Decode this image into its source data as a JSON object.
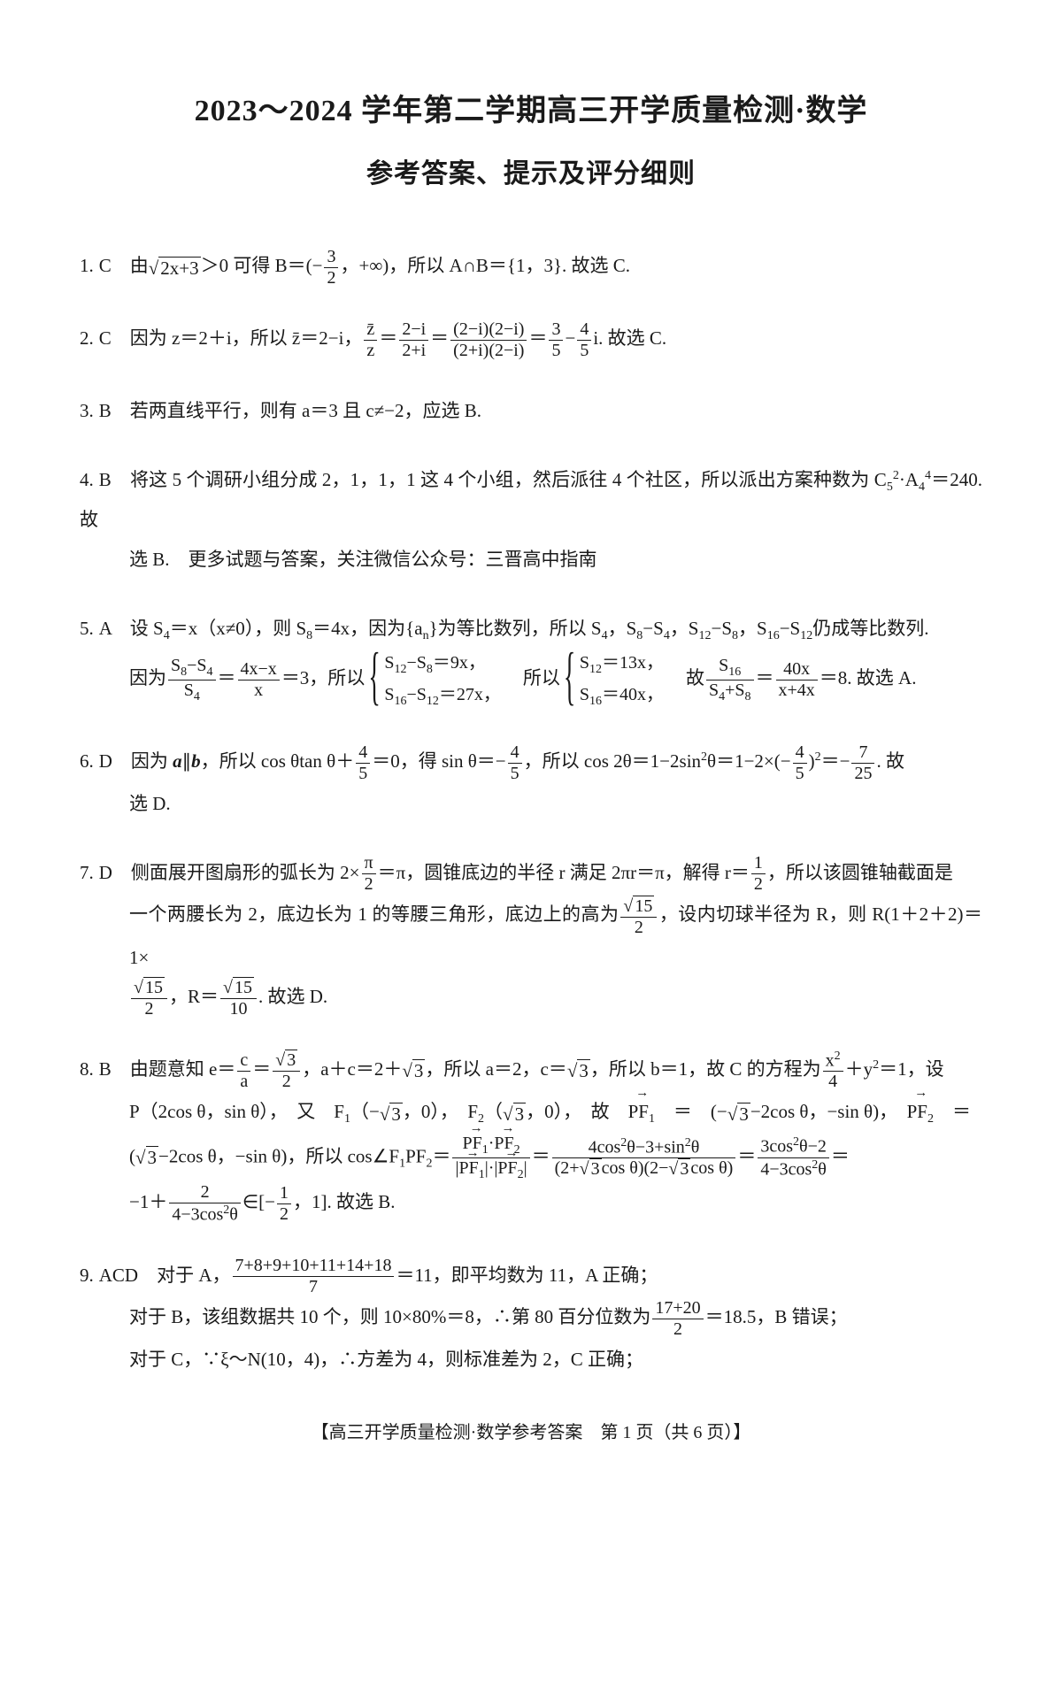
{
  "header": {
    "title1": "2023～2024 学年第二学期高三开学质量检测·数学",
    "title2": "参考答案、提示及评分细则"
  },
  "questions": [
    {
      "num": "1.",
      "ans": "C",
      "lines": [
        "由<span class='radical'>√<span class='sqrt'>2x+3</span></span>＞0 可得 B＝(−<span class='frac'><span class='num'>3</span><span class='den'>2</span></span>，+∞)，所以 A∩B＝{1，3}. 故选 C."
      ]
    },
    {
      "num": "2.",
      "ans": "C",
      "lines": [
        "因为 z＝2＋i，所以 z̄＝2−i，<span class='frac'><span class='num'>z̄</span><span class='den'>z</span></span>＝<span class='frac'><span class='num'>2−i</span><span class='den'>2+i</span></span>＝<span class='frac'><span class='num'>(2−i)(2−i)</span><span class='den'>(2+i)(2−i)</span></span>＝<span class='frac'><span class='num'>3</span><span class='den'>5</span></span>−<span class='frac'><span class='num'>4</span><span class='den'>5</span></span>i. 故选 C."
      ]
    },
    {
      "num": "3.",
      "ans": "B",
      "lines": [
        "若两直线平行，则有 a＝3 且 c≠−2，应选 B."
      ]
    },
    {
      "num": "4.",
      "ans": "B",
      "lines": [
        "将这 5 个调研小组分成 2，1，1，1 这 4 个小组，然后派往 4 个社区，所以派出方案种数为 C<sub>5</sub><sup>2</sup>·A<sub>4</sub><sup>4</sup>＝240. 故",
        "选 B.　更多试题与答案，关注微信公众号：三晋高中指南"
      ]
    },
    {
      "num": "5.",
      "ans": "A",
      "lines": [
        "设 S<sub>4</sub>＝x（x≠0），则 S<sub>8</sub>＝4x，因为{a<sub>n</sub>}为等比数列，所以 S<sub>4</sub>，S<sub>8</sub>−S<sub>4</sub>，S<sub>12</sub>−S<sub>8</sub>，S<sub>16</sub>−S<sub>12</sub>仍成等比数列.",
        "因为<span class='frac'><span class='num'>S<sub>8</sub>−S<sub>4</sub></span><span class='den'>S<sub>4</sub></span></span>＝<span class='frac'><span class='num'>4x−x</span><span class='den'>x</span></span>＝3，所以<span class='brace'><span class='row'>S<sub>12</sub>−S<sub>8</sub>＝9x，</span><span class='row'>S<sub>16</sub>−S<sub>12</sub>＝27x，</span></span>　所以<span class='brace'><span class='row'>S<sub>12</sub>＝13x，</span><span class='row'>S<sub>16</sub>＝40x，</span></span>　故<span class='frac'><span class='num'>S<sub>16</sub></span><span class='den'>S<sub>4</sub>+S<sub>8</sub></span></span>＝<span class='frac'><span class='num'>40x</span><span class='den'>x+4x</span></span>＝8. 故选 A."
      ]
    },
    {
      "num": "6.",
      "ans": "D",
      "lines": [
        "因为 <b><i>a</i></b>∥<b><i>b</i></b>，所以 cos θtan θ＋<span class='frac'><span class='num'>4</span><span class='den'>5</span></span>＝0，得 sin θ＝−<span class='frac'><span class='num'>4</span><span class='den'>5</span></span>，所以 cos 2θ＝1−2sin<sup>2</sup>θ＝1−2×(−<span class='frac'><span class='num'>4</span><span class='den'>5</span></span>)<sup>2</sup>＝−<span class='frac'><span class='num'>7</span><span class='den'>25</span></span>. 故",
        "选 D."
      ]
    },
    {
      "num": "7.",
      "ans": "D",
      "lines": [
        "侧面展开图扇形的弧长为 2×<span class='frac'><span class='num'>π</span><span class='den'>2</span></span>＝π，圆锥底边的半径 r 满足 2πr＝π，解得 r＝<span class='frac'><span class='num'>1</span><span class='den'>2</span></span>，所以该圆锥轴截面是",
        "一个两腰长为 2，底边长为 1 的等腰三角形，底边上的高为<span class='frac'><span class='num'><span class='radical'>√<span class='sqrt'>15</span></span></span><span class='den'>2</span></span>，设内切球半径为 R，则 R(1＋2＋2)＝1×",
        "<span class='frac'><span class='num'><span class='radical'>√<span class='sqrt'>15</span></span></span><span class='den'>2</span></span>，R＝<span class='frac'><span class='num'><span class='radical'>√<span class='sqrt'>15</span></span></span><span class='den'>10</span></span>. 故选 D."
      ]
    },
    {
      "num": "8.",
      "ans": "B",
      "lines": [
        "由题意知 e＝<span class='frac'><span class='num'>c</span><span class='den'>a</span></span>＝<span class='frac'><span class='num'><span class='radical'>√<span class='sqrt'>3</span></span></span><span class='den'>2</span></span>，a＋c＝2＋<span class='radical'>√<span class='sqrt'>3</span></span>，所以 a＝2，c＝<span class='radical'>√<span class='sqrt'>3</span></span>，所以 b＝1，故 C 的方程为<span class='frac'><span class='num'>x<sup>2</sup></span><span class='den'>4</span></span>＋y<sup>2</sup>＝1，设",
        "P（2cos θ，sin θ），　又　F<sub>1</sub>（−<span class='radical'>√<span class='sqrt'>3</span></span>，0），　F<sub>2</sub>（<span class='radical'>√<span class='sqrt'>3</span></span>，0），　故　<span class='vec'>PF<sub>1</sub></span>　＝　(−<span class='radical'>√<span class='sqrt'>3</span></span>−2cos θ，−sin θ)，　<span class='vec'>PF<sub>2</sub></span>　＝",
        "(<span class='radical'>√<span class='sqrt'>3</span></span>−2cos θ，−sin θ)，所以 cos∠F<sub>1</sub>PF<sub>2</sub>＝<span class='frac'><span class='num'><span class='vec'>PF<sub>1</sub></span>·<span class='vec'>PF<sub>2</sub></span></span><span class='den'>|<span class='vec'>PF<sub>1</sub></span>|·|<span class='vec'>PF<sub>2</sub></span>|</span></span>＝<span class='frac'><span class='num'>4cos<sup>2</sup>θ−3+sin<sup>2</sup>θ</span><span class='den'>(2+<span class='radical'>√<span class='sqrt'>3</span></span>cos θ)(2−<span class='radical'>√<span class='sqrt'>3</span></span>cos θ)</span></span>＝<span class='frac'><span class='num'>3cos<sup>2</sup>θ−2</span><span class='den'>4−3cos<sup>2</sup>θ</span></span>＝",
        "−1＋<span class='frac'><span class='num'>2</span><span class='den'>4−3cos<sup>2</sup>θ</span></span>∈[−<span class='frac'><span class='num'>1</span><span class='den'>2</span></span>，1]. 故选 B."
      ]
    },
    {
      "num": "9.",
      "ans": "ACD",
      "lines": [
        "对于 A，<span class='frac'><span class='num'>7+8+9+10+11+14+18</span><span class='den'>7</span></span>＝11，即平均数为 11，A 正确；",
        "对于 B，该组数据共 10 个，则 10×80%＝8，∴第 80 百分位数为<span class='frac'><span class='num'>17+20</span><span class='den'>2</span></span>＝18.5，B 错误；",
        "对于 C，∵ξ～N(10，4)，∴方差为 4，则标准差为 2，C 正确；"
      ]
    }
  ],
  "footer": "【高三开学质量检测·数学参考答案　第 1 页（共 6 页）】"
}
